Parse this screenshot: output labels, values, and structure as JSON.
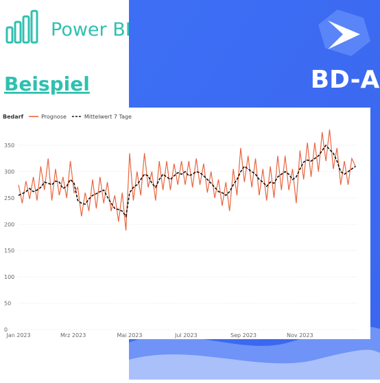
{
  "branding": {
    "product": "Power BI",
    "label": "Beispiel",
    "company": "BD-A"
  },
  "chart_data": {
    "type": "line",
    "legend_title": "Bedarf",
    "x": [
      0,
      4,
      8,
      12,
      16,
      20,
      24,
      28,
      32,
      36,
      40,
      44,
      48,
      52,
      56,
      60,
      64,
      68,
      72,
      76,
      80,
      84,
      88,
      92,
      96,
      100,
      104,
      108,
      112,
      116,
      120,
      124,
      128,
      132,
      136,
      140,
      144,
      148,
      152,
      156,
      160,
      164,
      168,
      172,
      176,
      180,
      184,
      188,
      192,
      196,
      200,
      204,
      208,
      212,
      216,
      220,
      224,
      228,
      232,
      236,
      240,
      244,
      248,
      252,
      256,
      260,
      264,
      268,
      272,
      276,
      280,
      284,
      288,
      292,
      296,
      300,
      304,
      308,
      312,
      316,
      320,
      324,
      328,
      332,
      336,
      340,
      344,
      348,
      352,
      356,
      360,
      364
    ],
    "xlim": [
      0,
      366
    ],
    "xticks": [
      {
        "value": 0,
        "label": "Jan 2023"
      },
      {
        "value": 59,
        "label": "Mrz 2023"
      },
      {
        "value": 120,
        "label": "Mai 2023"
      },
      {
        "value": 181,
        "label": "Jul 2023"
      },
      {
        "value": 243,
        "label": "Sep 2023"
      },
      {
        "value": 304,
        "label": "Nov 2023"
      }
    ],
    "ylim": [
      0,
      380
    ],
    "yticks": [
      0,
      50,
      100,
      150,
      200,
      250,
      300,
      350
    ],
    "grid": true,
    "series": [
      {
        "name": "Prognose",
        "color": "#e8653f",
        "dash": false,
        "values": [
          275,
          240,
          282,
          248,
          290,
          245,
          310,
          265,
          325,
          245,
          305,
          255,
          290,
          250,
          320,
          260,
          270,
          215,
          260,
          225,
          285,
          230,
          290,
          240,
          280,
          225,
          255,
          205,
          260,
          188,
          335,
          245,
          300,
          255,
          335,
          270,
          300,
          245,
          320,
          265,
          320,
          265,
          315,
          275,
          320,
          275,
          320,
          270,
          325,
          275,
          315,
          260,
          300,
          250,
          285,
          235,
          280,
          225,
          305,
          255,
          345,
          280,
          330,
          270,
          325,
          255,
          305,
          245,
          310,
          250,
          330,
          265,
          330,
          265,
          305,
          240,
          340,
          285,
          355,
          290,
          355,
          300,
          375,
          320,
          380,
          305,
          345,
          275,
          320,
          275,
          325,
          310
        ]
      },
      {
        "name": "Mittelwert 7 Tage",
        "color": "#111111",
        "dash": true,
        "values": [
          255,
          258,
          262,
          268,
          262,
          265,
          270,
          280,
          278,
          275,
          282,
          280,
          268,
          272,
          285,
          278,
          245,
          240,
          238,
          248,
          255,
          258,
          262,
          265,
          252,
          240,
          230,
          228,
          225,
          215,
          260,
          270,
          275,
          285,
          295,
          292,
          278,
          270,
          285,
          295,
          290,
          285,
          292,
          298,
          295,
          300,
          292,
          295,
          300,
          298,
          292,
          285,
          278,
          270,
          262,
          260,
          255,
          262,
          275,
          285,
          300,
          310,
          305,
          300,
          295,
          285,
          280,
          272,
          280,
          278,
          290,
          295,
          300,
          295,
          285,
          290,
          305,
          318,
          322,
          320,
          325,
          330,
          340,
          350,
          342,
          335,
          320,
          300,
          295,
          300,
          305,
          310
        ]
      }
    ]
  }
}
